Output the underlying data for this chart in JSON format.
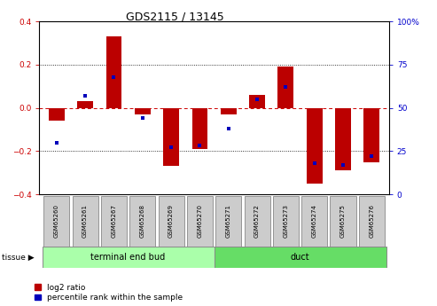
{
  "title": "GDS2115 / 13145",
  "samples": [
    "GSM65260",
    "GSM65261",
    "GSM65267",
    "GSM65268",
    "GSM65269",
    "GSM65270",
    "GSM65271",
    "GSM65272",
    "GSM65273",
    "GSM65274",
    "GSM65275",
    "GSM65276"
  ],
  "log2_ratio": [
    -0.06,
    0.03,
    0.33,
    -0.03,
    -0.27,
    -0.19,
    -0.03,
    0.06,
    0.19,
    -0.35,
    -0.29,
    -0.25
  ],
  "percentile_rank": [
    30,
    57,
    68,
    44,
    27,
    28,
    38,
    55,
    62,
    18,
    17,
    22
  ],
  "tissue_groups": [
    {
      "label": "terminal end bud",
      "start": 0,
      "end": 6,
      "color": "#aaffaa"
    },
    {
      "label": "duct",
      "start": 6,
      "end": 12,
      "color": "#66dd66"
    }
  ],
  "bar_color": "#bb0000",
  "dot_color": "#0000bb",
  "zero_line_color": "#cc0000",
  "ylim_left": [
    -0.4,
    0.4
  ],
  "ylim_right": [
    0,
    100
  ],
  "yticks_left": [
    -0.4,
    -0.2,
    0.0,
    0.2,
    0.4
  ],
  "yticks_right": [
    0,
    25,
    50,
    75,
    100
  ],
  "ytick_labels_right": [
    "0",
    "25",
    "50",
    "75",
    "100%"
  ],
  "bar_width": 0.55,
  "bg_color": "#ffffff",
  "legend_red_label": "log2 ratio",
  "legend_blue_label": "percentile rank within the sample",
  "tissue_label": "tissue",
  "sample_box_color": "#cccccc"
}
